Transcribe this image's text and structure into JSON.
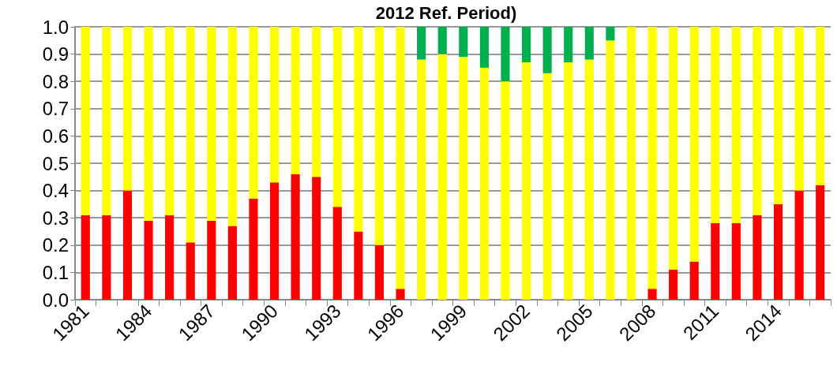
{
  "chart_data": {
    "type": "bar",
    "title": "2012 Ref. Period)",
    "stacked": true,
    "grid": "y",
    "categories": [
      "1981",
      null,
      null,
      "1984",
      null,
      null,
      "1987",
      null,
      null,
      "1990",
      null,
      null,
      "1993",
      null,
      null,
      "1996",
      null,
      null,
      "1999",
      null,
      null,
      "2002",
      null,
      null,
      "2005",
      null,
      null,
      "2008",
      null,
      null,
      "2011",
      null,
      null,
      "2014",
      null,
      null
    ],
    "series": [
      {
        "color": "#ff0000",
        "values": [
          0.31,
          0.31,
          0.4,
          0.29,
          0.31,
          0.21,
          0.29,
          0.27,
          0.37,
          0.43,
          0.46,
          0.45,
          0.34,
          0.25,
          0.2,
          0.04,
          0,
          0,
          0,
          0,
          0,
          0,
          0,
          0,
          0,
          0,
          0,
          0.04,
          0.11,
          0.14,
          0.28,
          0.28,
          0.31,
          0.35,
          0.4,
          0.42
        ]
      },
      {
        "color": "#ffff00",
        "values": [
          0.69,
          0.69,
          0.6,
          0.71,
          0.69,
          0.79,
          0.71,
          0.73,
          0.63,
          0.57,
          0.54,
          0.55,
          0.66,
          0.75,
          0.8,
          0.96,
          0.88,
          0.9,
          0.89,
          0.85,
          0.8,
          0.87,
          0.83,
          0.87,
          0.88,
          0.95,
          1.0,
          0.96,
          0.89,
          0.86,
          0.72,
          0.72,
          0.69,
          0.65,
          0.6,
          0.58
        ]
      },
      {
        "color": "#00b050",
        "values": [
          0,
          0,
          0,
          0,
          0,
          0,
          0,
          0,
          0,
          0,
          0,
          0,
          0,
          0,
          0,
          0,
          0.12,
          0.1,
          0.11,
          0.15,
          0.2,
          0.13,
          0.17,
          0.13,
          0.12,
          0.05,
          0,
          0,
          0,
          0,
          0,
          0,
          0,
          0,
          0,
          0
        ]
      }
    ],
    "ylim": [
      0,
      1
    ],
    "yticks": [
      {
        "value": 0,
        "label": "0.0"
      },
      {
        "value": 0.1,
        "label": "0.1"
      },
      {
        "value": 0.2,
        "label": "0.2"
      },
      {
        "value": 0.3,
        "label": "0.3"
      },
      {
        "value": 0.4,
        "label": "0.4"
      },
      {
        "value": 0.5,
        "label": "0.5"
      },
      {
        "value": 0.6,
        "label": "0.6"
      },
      {
        "value": 0.7,
        "label": "0.7"
      },
      {
        "value": 0.8,
        "label": "0.8"
      },
      {
        "value": 0.9,
        "label": "0.9"
      },
      {
        "value": 1,
        "label": "1.0"
      }
    ]
  }
}
